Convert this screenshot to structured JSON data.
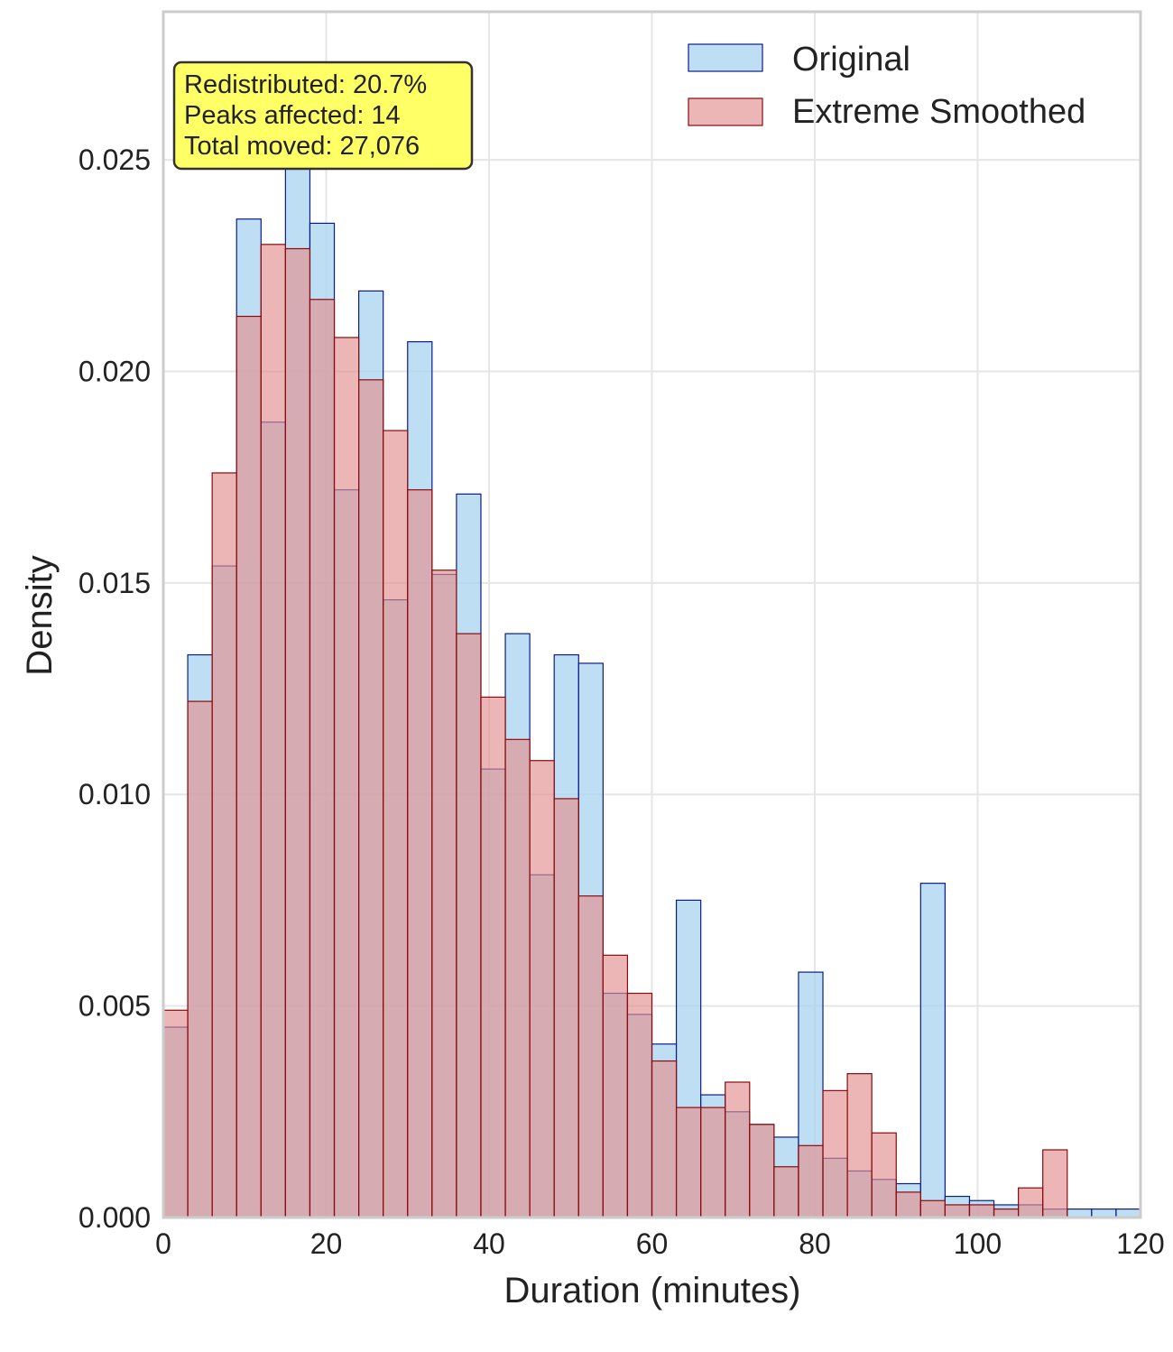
{
  "chart_data": {
    "type": "bar",
    "subtype": "overlaid-histogram",
    "xlabel": "Duration (minutes)",
    "ylabel": "Density",
    "xlim": [
      0,
      120
    ],
    "ylim": [
      0,
      0.0285
    ],
    "xticks": [
      0,
      20,
      40,
      60,
      80,
      100,
      120
    ],
    "yticks": [
      "0.000",
      "0.005",
      "0.010",
      "0.015",
      "0.020",
      "0.025"
    ],
    "grid": true,
    "legend_position": "top-right",
    "bin_width": 3,
    "bin_edges_start": 0,
    "series": [
      {
        "name": "Original",
        "fill_color": "#a8d4ef",
        "edge_color": "#0a1c8c",
        "values": [
          0.0045,
          0.0133,
          0.0154,
          0.0236,
          0.0188,
          0.027,
          0.0235,
          0.0172,
          0.0219,
          0.0146,
          0.0207,
          0.0152,
          0.0171,
          0.0106,
          0.0138,
          0.0081,
          0.0133,
          0.0131,
          0.0053,
          0.0048,
          0.0041,
          0.0075,
          0.0029,
          0.0025,
          0.0022,
          0.0019,
          0.0058,
          0.0014,
          0.0011,
          0.0009,
          0.0008,
          0.0079,
          0.0005,
          0.0004,
          0.0003,
          0.0003,
          0.0002,
          0.0002,
          0.0002,
          0.0002
        ]
      },
      {
        "name": "Extreme Smoothed",
        "fill_color": "#e38f8f",
        "edge_color": "#8b0a0a",
        "values": [
          0.0049,
          0.0122,
          0.0176,
          0.0213,
          0.023,
          0.0229,
          0.0217,
          0.0208,
          0.0198,
          0.0186,
          0.0172,
          0.0153,
          0.0138,
          0.0123,
          0.0113,
          0.0108,
          0.0099,
          0.0076,
          0.0062,
          0.0053,
          0.0037,
          0.0026,
          0.0026,
          0.0032,
          0.0022,
          0.0012,
          0.0017,
          0.003,
          0.0034,
          0.002,
          0.0006,
          0.0004,
          0.0003,
          0.0003,
          0.0002,
          0.0007,
          0.0016
        ]
      }
    ],
    "extreme_smoothed_start_bin": 0,
    "annotation": {
      "lines": [
        "Redistributed: 20.7%",
        "Peaks affected: 14",
        "Total moved: 27,076"
      ],
      "box_color": "#ffff66"
    }
  }
}
